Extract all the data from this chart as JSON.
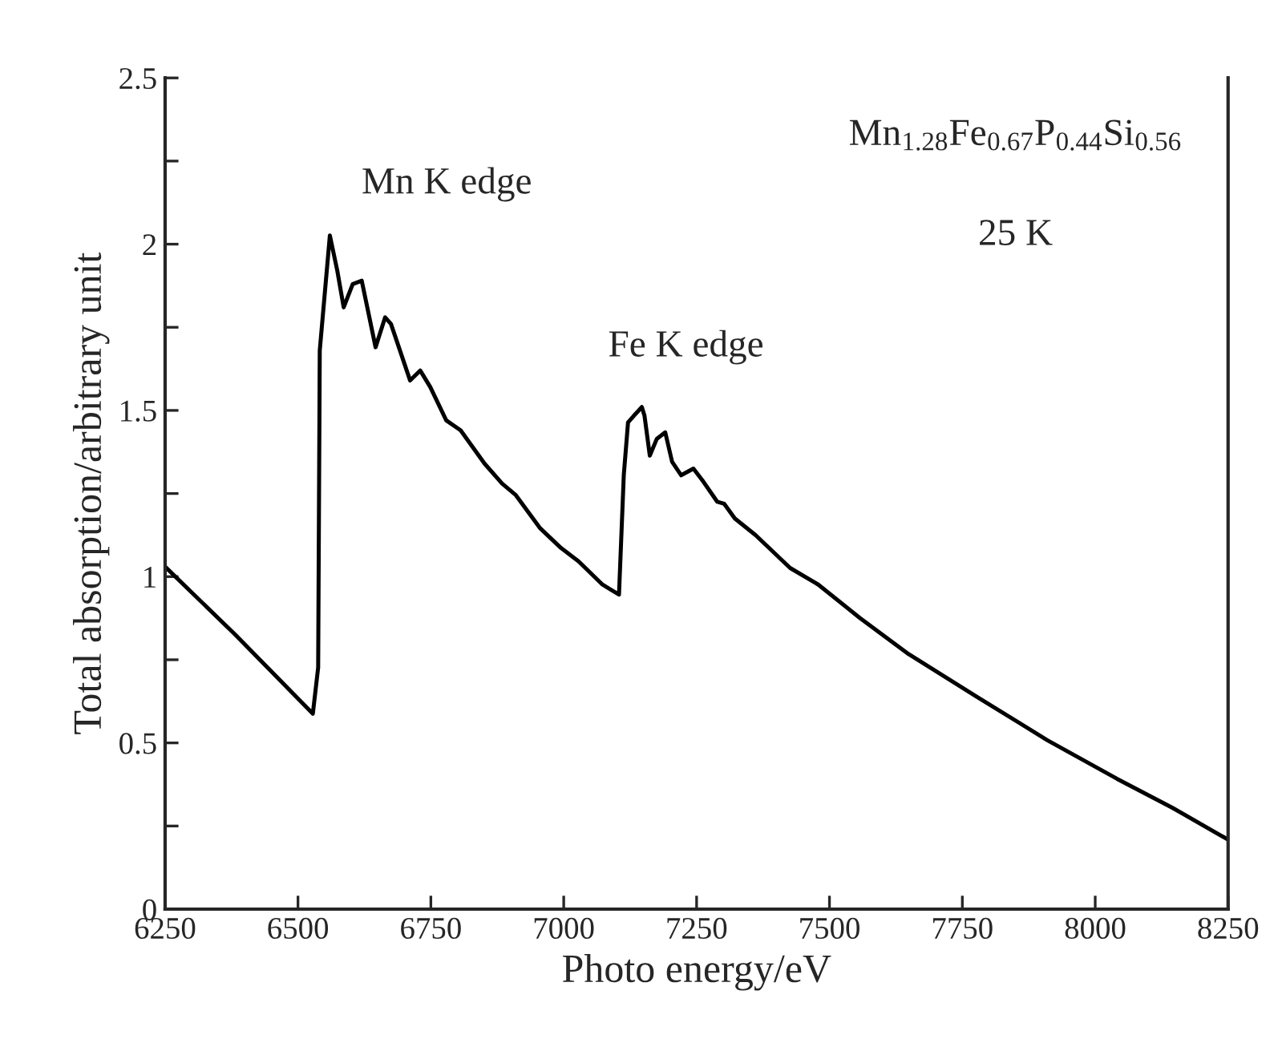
{
  "chart_data": {
    "type": "line",
    "xlabel": "Photo energy/eV",
    "ylabel": "Total absorption/arbitrary unit",
    "x": [
      6250,
      6381,
      6528,
      6538,
      6541,
      6560,
      6574,
      6586,
      6603,
      6620,
      6646,
      6664,
      6675,
      6711,
      6730,
      6749,
      6779,
      6806,
      6851,
      6884,
      6910,
      6956,
      6995,
      7028,
      7073,
      7104,
      7113,
      7121,
      7132,
      7147,
      7152,
      7162,
      7175,
      7191,
      7204,
      7221,
      7244,
      7263,
      7289,
      7302,
      7322,
      7361,
      7426,
      7479,
      7557,
      7649,
      7779,
      7910,
      8041,
      8145,
      8250
    ],
    "series": [
      {
        "color": "#000000",
        "values": [
          1.03,
          0.827,
          0.588,
          0.727,
          1.68,
          2.026,
          1.92,
          1.81,
          1.88,
          1.89,
          1.69,
          1.78,
          1.76,
          1.59,
          1.62,
          1.57,
          1.47,
          1.44,
          1.34,
          1.28,
          1.245,
          1.145,
          1.086,
          1.046,
          0.976,
          0.946,
          1.305,
          1.464,
          1.484,
          1.51,
          1.484,
          1.364,
          1.414,
          1.434,
          1.345,
          1.305,
          1.325,
          1.285,
          1.225,
          1.219,
          1.175,
          1.125,
          1.026,
          0.976,
          0.876,
          0.767,
          0.637,
          0.508,
          0.392,
          0.305,
          0.209
        ]
      }
    ],
    "xlim": [
      6250,
      8250
    ],
    "xticks": [
      6250,
      6500,
      6750,
      7000,
      7250,
      7500,
      7750,
      8000,
      8250
    ],
    "ylim": [
      0,
      2.5
    ],
    "yticks": [
      0,
      {
        "value": 0.25,
        "label": null
      },
      0.5,
      {
        "value": 0.75,
        "label": null
      },
      1,
      {
        "value": 1.25,
        "label": null
      },
      1.5,
      {
        "value": 1.75,
        "label": null
      },
      2,
      {
        "value": 2.25,
        "label": null
      },
      2.5
    ],
    "annotations": [
      "Mn K edge",
      "Fe K edge",
      "Mn$_{1.28}$Fe$_{0.67}$P$_{0.44}$Si$_{0.56}$",
      "25 K"
    ],
    "grid": false,
    "legend": false,
    "marker": "none",
    "line_style": "solid"
  }
}
